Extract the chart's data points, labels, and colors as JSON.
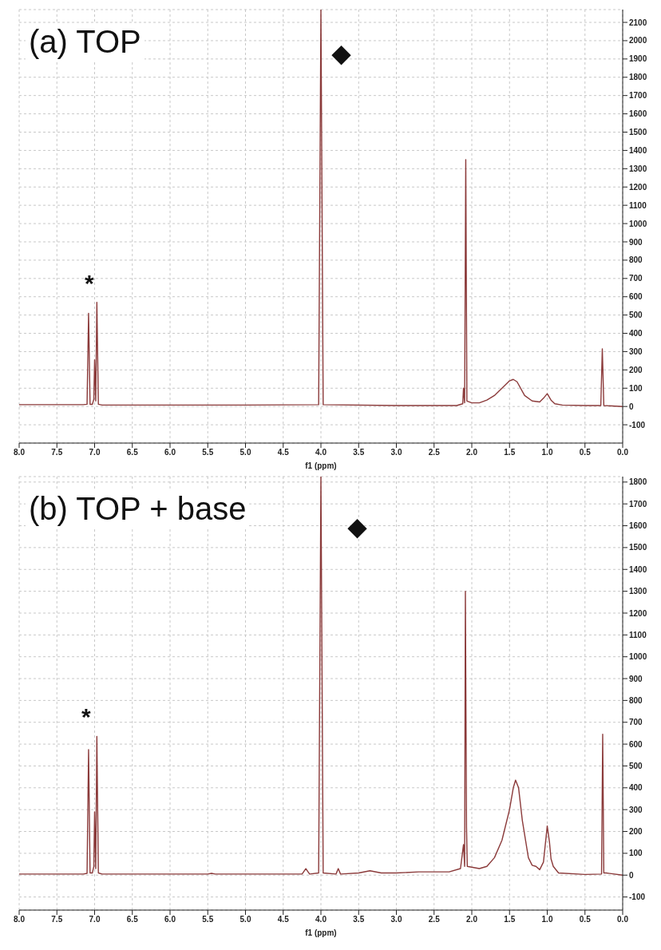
{
  "chart_data": [
    {
      "type": "line",
      "title": "(a) TOP",
      "xlabel": "f1 (ppm)",
      "xlim": [
        8.0,
        0.0
      ],
      "ylim": [
        -200,
        2170
      ],
      "grid": true,
      "marker": "none",
      "line_style": "solid",
      "xticks": [
        {
          "value": 8,
          "label": "8.0"
        },
        7.5,
        {
          "value": 7,
          "label": "7.0"
        },
        6.5,
        {
          "value": 6,
          "label": "6.0"
        },
        5.5,
        {
          "value": 5,
          "label": "5.0"
        },
        4.5,
        {
          "value": 4,
          "label": "4.0"
        },
        3.5,
        {
          "value": 3,
          "label": "3.0"
        },
        2.5,
        {
          "value": 2,
          "label": "2.0"
        },
        1.5,
        {
          "value": 1,
          "label": "1.0"
        },
        0.5,
        {
          "value": 0,
          "label": "0.0"
        }
      ],
      "yticks": [
        -100,
        0,
        100,
        200,
        300,
        400,
        500,
        600,
        700,
        800,
        900,
        1000,
        1100,
        1200,
        1300,
        1400,
        1500,
        1600,
        1700,
        1800,
        1900,
        2000,
        2100
      ],
      "annotations": [
        "*",
        "◆"
      ],
      "series": [
        {
          "color": "#8b3a3a",
          "x": [
            8.0,
            7.15,
            7.1,
            7.08,
            7.06,
            7.03,
            7.01,
            7.0,
            6.985,
            6.97,
            6.95,
            6.9,
            5.0,
            4.03,
            4.0,
            3.97,
            3.0,
            2.2,
            2.12,
            2.11,
            2.095,
            2.08,
            2.065,
            2.0,
            1.9,
            1.8,
            1.7,
            1.6,
            1.5,
            1.45,
            1.4,
            1.3,
            1.2,
            1.1,
            1.05,
            1.0,
            0.95,
            0.9,
            0.8,
            0.5,
            0.29,
            0.27,
            0.25,
            0.0
          ],
          "values": [
            10,
            10,
            12,
            510,
            12,
            12,
            40,
            255,
            30,
            570,
            12,
            8,
            8,
            10,
            2170,
            10,
            5,
            5,
            15,
            100,
            20,
            1350,
            30,
            20,
            20,
            35,
            60,
            100,
            140,
            148,
            135,
            60,
            30,
            25,
            45,
            70,
            35,
            15,
            8,
            5,
            5,
            315,
            5,
            0
          ]
        }
      ]
    },
    {
      "type": "line",
      "title": "(b) TOP + base",
      "xlabel": "f1 (ppm)",
      "xlim": [
        8.0,
        0.0
      ],
      "ylim": [
        -160,
        1825
      ],
      "grid": true,
      "marker": "none",
      "line_style": "solid",
      "xticks": [
        {
          "value": 8,
          "label": "8.0"
        },
        7.5,
        {
          "value": 7,
          "label": "7.0"
        },
        6.5,
        {
          "value": 6,
          "label": "6.0"
        },
        5.5,
        {
          "value": 5,
          "label": "5.0"
        },
        4.5,
        {
          "value": 4,
          "label": "4.0"
        },
        3.5,
        {
          "value": 3,
          "label": "3.0"
        },
        2.5,
        {
          "value": 2,
          "label": "2.0"
        },
        1.5,
        {
          "value": 1,
          "label": "1.0"
        },
        0.5,
        {
          "value": 0,
          "label": "0.0"
        }
      ],
      "yticks": [
        -100,
        0,
        100,
        200,
        300,
        400,
        500,
        600,
        700,
        800,
        900,
        1000,
        1100,
        1200,
        1300,
        1400,
        1500,
        1600,
        1700,
        1800
      ],
      "annotations": [
        "*",
        "◆"
      ],
      "series": [
        {
          "color": "#8b3a3a",
          "x": [
            8.0,
            7.15,
            7.1,
            7.08,
            7.06,
            7.03,
            7.01,
            7.0,
            6.985,
            6.97,
            6.95,
            6.9,
            5.5,
            5.45,
            5.4,
            4.25,
            4.2,
            4.15,
            4.03,
            4.0,
            3.97,
            3.8,
            3.77,
            3.74,
            3.5,
            3.35,
            3.2,
            3.0,
            2.7,
            2.3,
            2.15,
            2.11,
            2.095,
            2.085,
            2.07,
            2.06,
            1.9,
            1.8,
            1.7,
            1.6,
            1.5,
            1.45,
            1.42,
            1.38,
            1.33,
            1.25,
            1.2,
            1.15,
            1.1,
            1.05,
            1.0,
            0.97,
            0.95,
            0.92,
            0.85,
            0.5,
            0.28,
            0.265,
            0.25,
            0.22,
            0.0
          ],
          "values": [
            5,
            5,
            8,
            575,
            10,
            10,
            40,
            290,
            30,
            635,
            10,
            5,
            5,
            8,
            5,
            5,
            30,
            5,
            10,
            1825,
            10,
            5,
            30,
            5,
            10,
            20,
            10,
            10,
            15,
            15,
            30,
            140,
            40,
            1300,
            220,
            40,
            30,
            40,
            80,
            160,
            300,
            400,
            435,
            400,
            250,
            80,
            45,
            40,
            25,
            60,
            225,
            150,
            75,
            40,
            10,
            3,
            5,
            645,
            10,
            10,
            0
          ]
        }
      ]
    }
  ]
}
